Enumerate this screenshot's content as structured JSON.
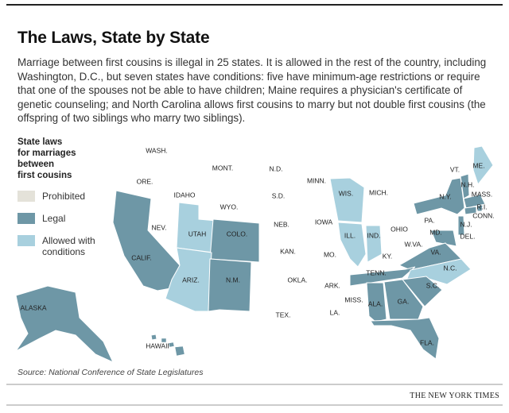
{
  "header": {
    "title": "The Laws, State by State",
    "description": "Marriage between first cousins is illegal in 25 states. It is allowed in the rest of the country, including Washington, D.C., but seven states have conditions: five have minimum-age restrictions or require that one of the spouses not be able to have children; Maine requires a physician's certificate of genetic counseling; and North Carolina allows first cousins to marry but not double first cousins (the offspring of two siblings who marry two siblings)."
  },
  "legend": {
    "title": [
      "State laws",
      "for marriages",
      "between",
      "first cousins"
    ],
    "items": [
      {
        "key": "prohibited",
        "label": "Prohibited",
        "color": "#e4e2d9"
      },
      {
        "key": "legal",
        "label": "Legal",
        "color": "#6e97a6"
      },
      {
        "key": "conditions",
        "label": "Allowed with conditions",
        "color": "#a8d0de"
      }
    ]
  },
  "map": {
    "states": [
      {
        "label": "WASH.",
        "status": "prohibited"
      },
      {
        "label": "MONT.",
        "status": "prohibited"
      },
      {
        "label": "N.D.",
        "status": "prohibited"
      },
      {
        "label": "MINN.",
        "status": "prohibited"
      },
      {
        "label": "ORE.",
        "status": "prohibited"
      },
      {
        "label": "IDAHO",
        "status": "prohibited"
      },
      {
        "label": "S.D.",
        "status": "prohibited"
      },
      {
        "label": "WIS.",
        "status": "conditions"
      },
      {
        "label": "MICH.",
        "status": "prohibited"
      },
      {
        "label": "WYO.",
        "status": "prohibited"
      },
      {
        "label": "NEB.",
        "status": "prohibited"
      },
      {
        "label": "IOWA",
        "status": "prohibited"
      },
      {
        "label": "NEV.",
        "status": "prohibited"
      },
      {
        "label": "UTAH",
        "status": "conditions"
      },
      {
        "label": "COLO.",
        "status": "legal"
      },
      {
        "label": "ILL.",
        "status": "conditions"
      },
      {
        "label": "IND.",
        "status": "conditions"
      },
      {
        "label": "OHIO",
        "status": "prohibited"
      },
      {
        "label": "PA.",
        "status": "prohibited"
      },
      {
        "label": "N.Y.",
        "status": "legal"
      },
      {
        "label": "VT.",
        "status": "legal"
      },
      {
        "label": "ME.",
        "status": "conditions"
      },
      {
        "label": "N.H.",
        "status": "prohibited"
      },
      {
        "label": "MASS.",
        "status": "legal"
      },
      {
        "label": "R.I.",
        "status": "legal"
      },
      {
        "label": "CONN.",
        "status": "legal"
      },
      {
        "label": "N.J.",
        "status": "legal"
      },
      {
        "label": "DEL.",
        "status": "prohibited"
      },
      {
        "label": "MD.",
        "status": "legal"
      },
      {
        "label": "W.VA.",
        "status": "prohibited"
      },
      {
        "label": "VA.",
        "status": "legal"
      },
      {
        "label": "KAN.",
        "status": "prohibited"
      },
      {
        "label": "MO.",
        "status": "prohibited"
      },
      {
        "label": "KY.",
        "status": "prohibited"
      },
      {
        "label": "CALIF.",
        "status": "legal"
      },
      {
        "label": "TENN.",
        "status": "legal"
      },
      {
        "label": "N.C.",
        "status": "conditions"
      },
      {
        "label": "ARIZ.",
        "status": "conditions"
      },
      {
        "label": "N.M.",
        "status": "legal"
      },
      {
        "label": "OKLA.",
        "status": "prohibited"
      },
      {
        "label": "ARK.",
        "status": "prohibited"
      },
      {
        "label": "S.C.",
        "status": "legal"
      },
      {
        "label": "ALA.",
        "status": "legal"
      },
      {
        "label": "GA.",
        "status": "legal"
      },
      {
        "label": "MISS.",
        "status": "prohibited"
      },
      {
        "label": "TEX.",
        "status": "prohibited"
      },
      {
        "label": "LA.",
        "status": "prohibited"
      },
      {
        "label": "FLA.",
        "status": "legal"
      },
      {
        "label": "ALASKA",
        "status": "legal"
      },
      {
        "label": "HAWAII",
        "status": "legal"
      }
    ]
  },
  "footer": {
    "source": "Source: National Conference of State Legislatures",
    "credit": "THE NEW YORK TIMES"
  }
}
